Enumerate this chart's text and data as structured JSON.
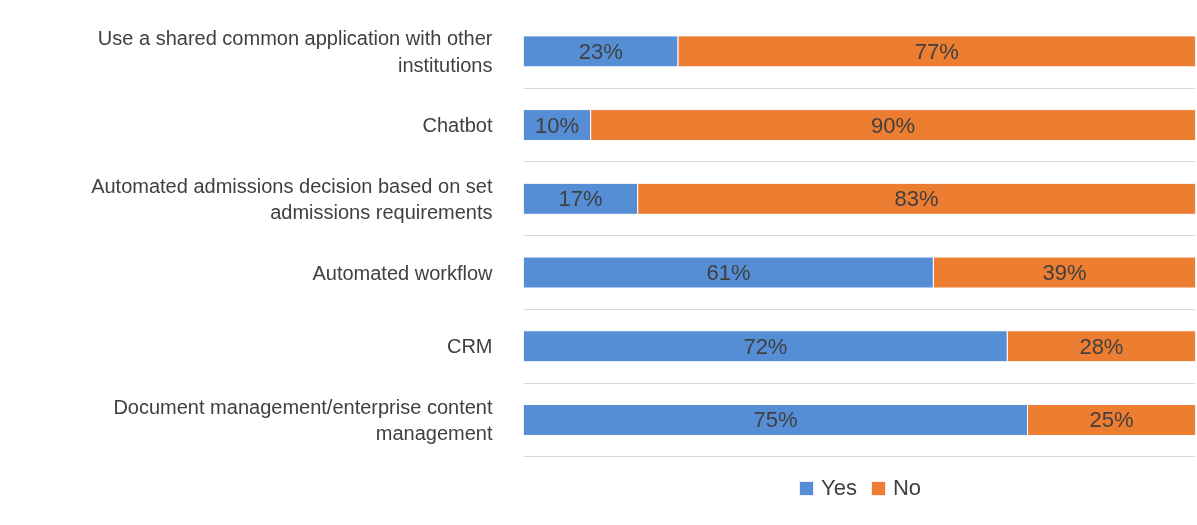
{
  "chart_data": {
    "type": "bar",
    "orientation": "horizontal",
    "stacked": true,
    "categories": [
      "Use a shared common application with other institutions",
      "Chatbot",
      "Automated admissions decision based on set admissions requirements",
      "Automated workflow",
      "CRM",
      "Document management/enterprise content management"
    ],
    "series": [
      {
        "name": "Yes",
        "color": "#558ed5",
        "values": [
          23,
          10,
          17,
          61,
          72,
          75
        ],
        "value_labels": [
          "23%",
          "10%",
          "17%",
          "61%",
          "72%",
          "75%"
        ]
      },
      {
        "name": "No",
        "color": "#ed7d31",
        "values": [
          77,
          90,
          83,
          39,
          28,
          25
        ],
        "value_labels": [
          "77%",
          "90%",
          "83%",
          "39%",
          "28%",
          "25%"
        ]
      }
    ],
    "grid": "y",
    "legend": "bottom",
    "tick_labels": "y"
  }
}
